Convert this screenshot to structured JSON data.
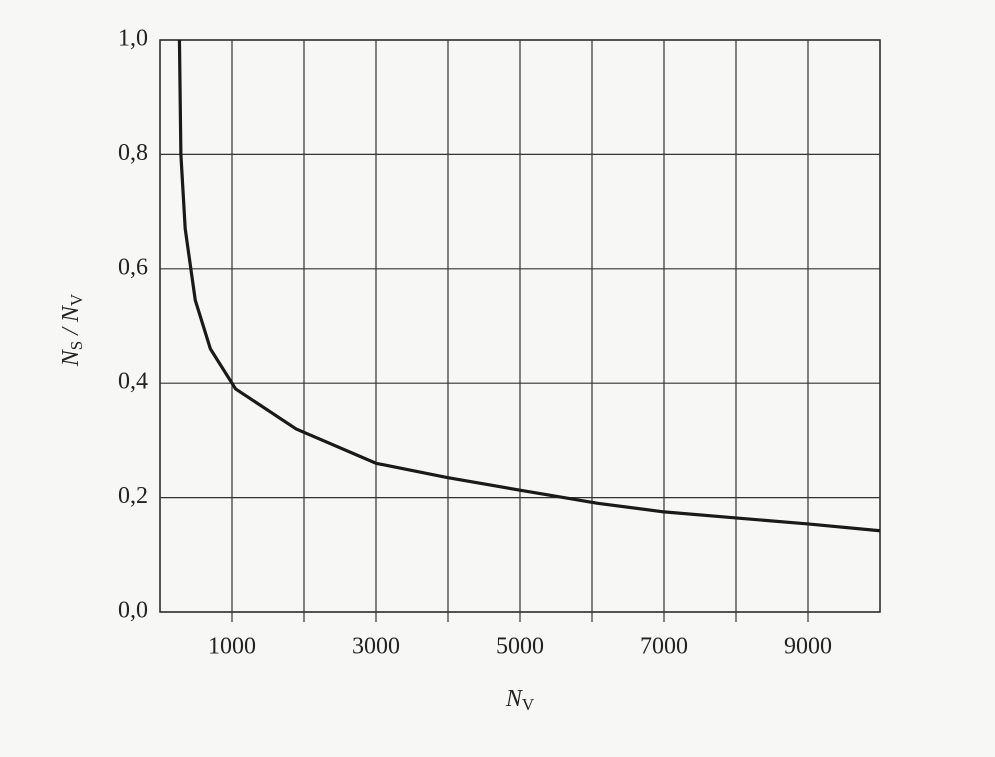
{
  "chart_data": {
    "type": "line",
    "xlabel": {
      "main": "N",
      "sub": "V"
    },
    "ylabel": {
      "main": "N",
      "sub": "S",
      "sep": " / N",
      "sub2": "V"
    },
    "x": [
      270,
      290,
      350,
      490,
      700,
      1050,
      1890,
      3000,
      3990,
      5000,
      6080,
      7000,
      8040,
      9000,
      10000
    ],
    "series": [
      {
        "color": "#1a1a1a",
        "values": [
          1.0,
          0.8,
          0.67,
          0.545,
          0.46,
          0.39,
          0.32,
          0.26,
          0.235,
          0.213,
          0.19,
          0.175,
          0.164,
          0.154,
          0.142
        ]
      }
    ],
    "xlim": [
      0,
      10000
    ],
    "ylim": [
      0,
      1.0
    ],
    "xticks": [
      1000,
      3000,
      5000,
      7000,
      9000
    ],
    "xgrid_ticks": [
      2000,
      4000,
      6000,
      8000
    ],
    "yticks": [
      {
        "value": 0,
        "label": "0,0"
      },
      {
        "value": 0.2,
        "label": "0,2"
      },
      {
        "value": 0.4,
        "label": "0,4"
      },
      {
        "value": 0.6,
        "label": "0,6"
      },
      {
        "value": 0.8,
        "label": "0,8"
      },
      {
        "value": 1.0,
        "label": "1,0"
      }
    ],
    "grid": true
  }
}
